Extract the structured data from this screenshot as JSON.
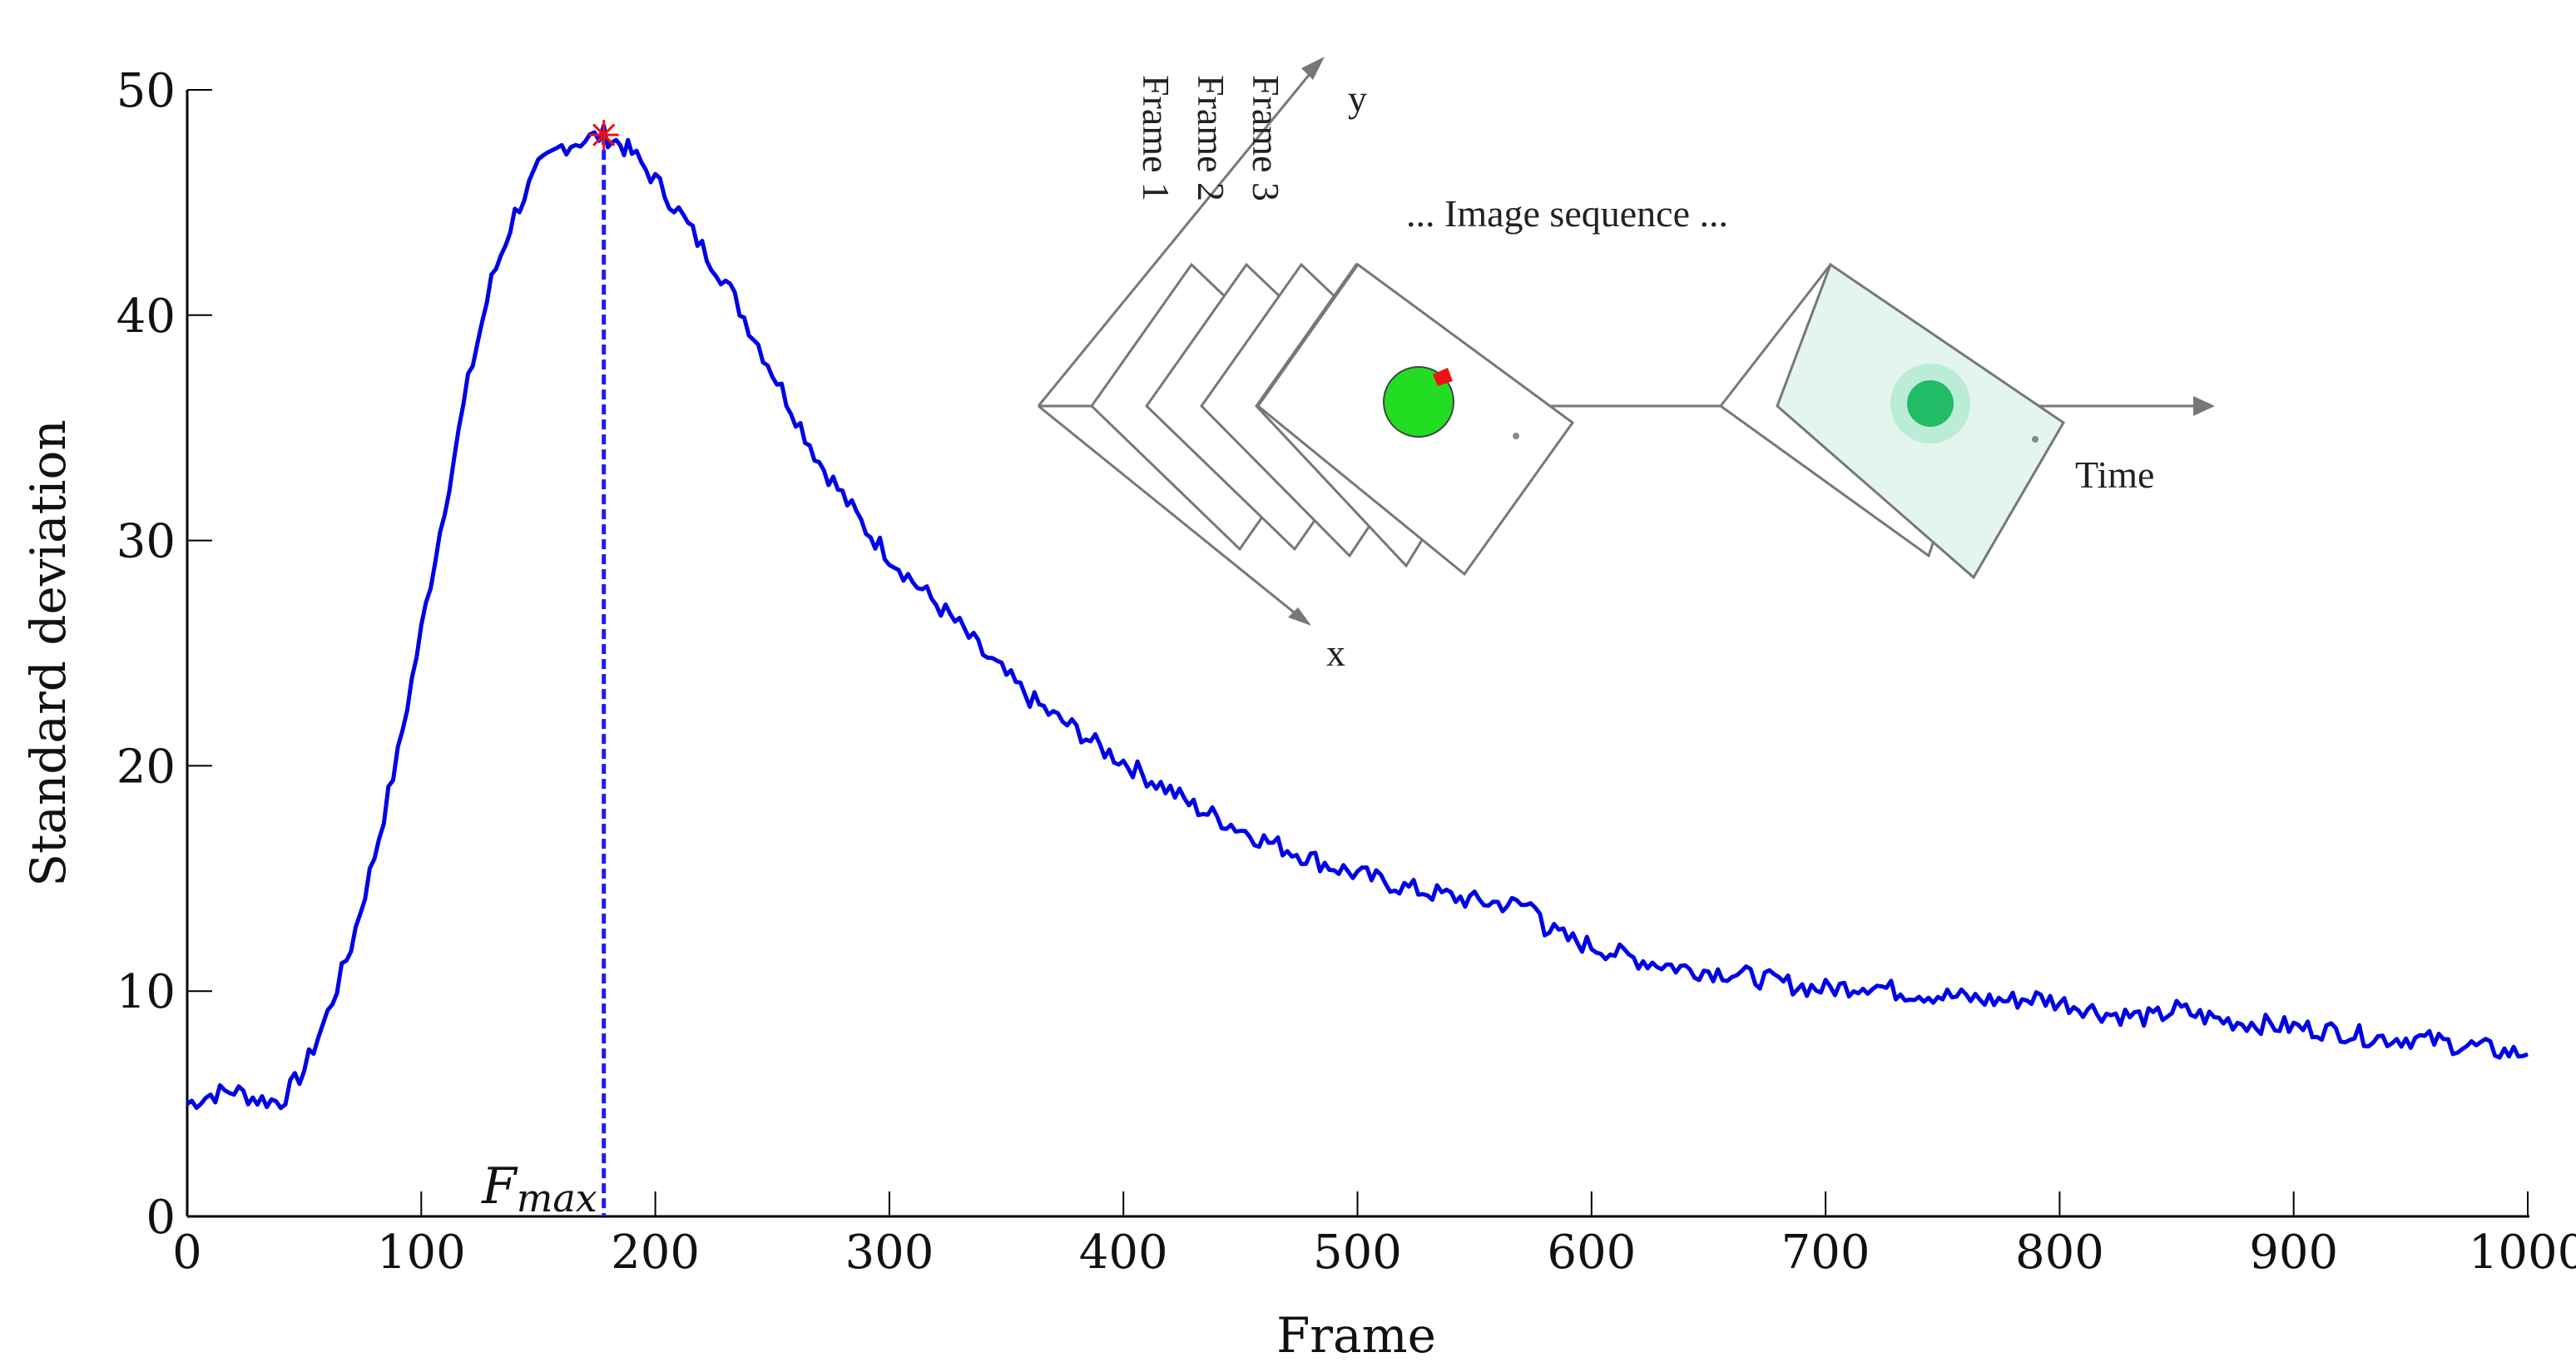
{
  "chart_data": {
    "type": "line",
    "title": "",
    "xlabel": "Frame",
    "ylabel": "Standard deviation",
    "xlim": [
      0,
      1000
    ],
    "ylim": [
      0,
      50
    ],
    "x_ticks": [
      0,
      100,
      200,
      300,
      400,
      500,
      600,
      700,
      800,
      900,
      1000
    ],
    "y_ticks": [
      0,
      10,
      20,
      30,
      40,
      50
    ],
    "series": [
      {
        "name": "Standard deviation",
        "color": "#0000e6",
        "x": [
          0,
          10,
          20,
          30,
          40,
          50,
          60,
          70,
          80,
          90,
          100,
          110,
          120,
          130,
          140,
          150,
          160,
          170,
          178,
          185,
          190,
          200,
          210,
          220,
          230,
          240,
          250,
          260,
          270,
          280,
          290,
          300,
          310,
          320,
          330,
          340,
          350,
          360,
          370,
          380,
          390,
          400,
          410,
          420,
          430,
          440,
          450,
          460,
          470,
          480,
          490,
          500,
          510,
          520,
          530,
          540,
          550,
          560,
          570,
          578,
          580,
          590,
          600,
          610,
          620,
          630,
          640,
          650,
          660,
          670,
          680,
          690,
          700,
          710,
          720,
          730,
          740,
          750,
          760,
          770,
          780,
          790,
          800,
          810,
          820,
          830,
          840,
          850,
          860,
          870,
          880,
          890,
          900,
          910,
          920,
          930,
          940,
          950,
          960,
          970,
          980,
          990,
          1000
        ],
        "y": [
          5.0,
          5.4,
          5.6,
          5.2,
          5.1,
          6.5,
          9.0,
          12.0,
          16.0,
          20.5,
          26.0,
          31.5,
          37.0,
          41.5,
          44.5,
          46.5,
          47.5,
          47.8,
          48.0,
          47.6,
          47.2,
          46.0,
          44.6,
          43.0,
          41.5,
          39.5,
          37.5,
          35.5,
          33.5,
          32.0,
          30.5,
          29.3,
          28.2,
          27.2,
          26.2,
          25.0,
          24.0,
          23.0,
          22.2,
          21.6,
          20.8,
          20.2,
          19.5,
          18.9,
          18.2,
          17.7,
          17.2,
          16.7,
          16.3,
          15.9,
          15.5,
          15.2,
          14.9,
          14.6,
          14.4,
          14.2,
          14.0,
          13.9,
          13.8,
          13.8,
          12.8,
          12.3,
          12.0,
          11.7,
          11.4,
          11.2,
          11.0,
          10.9,
          10.8,
          10.6,
          10.4,
          10.2,
          10.1,
          10.2,
          10.3,
          10.0,
          9.9,
          9.8,
          9.7,
          9.6,
          9.6,
          9.7,
          9.5,
          9.3,
          9.0,
          8.9,
          8.8,
          9.2,
          8.9,
          8.7,
          8.6,
          8.5,
          8.4,
          8.3,
          8.2,
          8.0,
          7.9,
          7.9,
          7.8,
          7.6,
          7.5,
          7.3,
          7.2
        ]
      }
    ],
    "peak": {
      "x": 178,
      "y": 48,
      "marker": "asterisk",
      "color": "#ee1111"
    },
    "annotations": [
      {
        "text": "F",
        "subscript": "max",
        "x": 178,
        "style": "dashed vertical line from peak to x-axis"
      }
    ]
  },
  "inset": {
    "frame_labels": [
      "Frame 1",
      "Frame 2",
      "Frame 3"
    ],
    "sequence_label": "... Image sequence ...",
    "time_label": "Time",
    "x_label": "x",
    "y_label": "y",
    "early_blob_color": "#22dd22",
    "late_blob_color": "#22bb66",
    "late_frame_fill": "#e3f5ee",
    "red_marker_color": "#ee1111"
  },
  "colors": {
    "line": "#0000e6",
    "axis": "#000000",
    "inset_lines": "#777777"
  }
}
